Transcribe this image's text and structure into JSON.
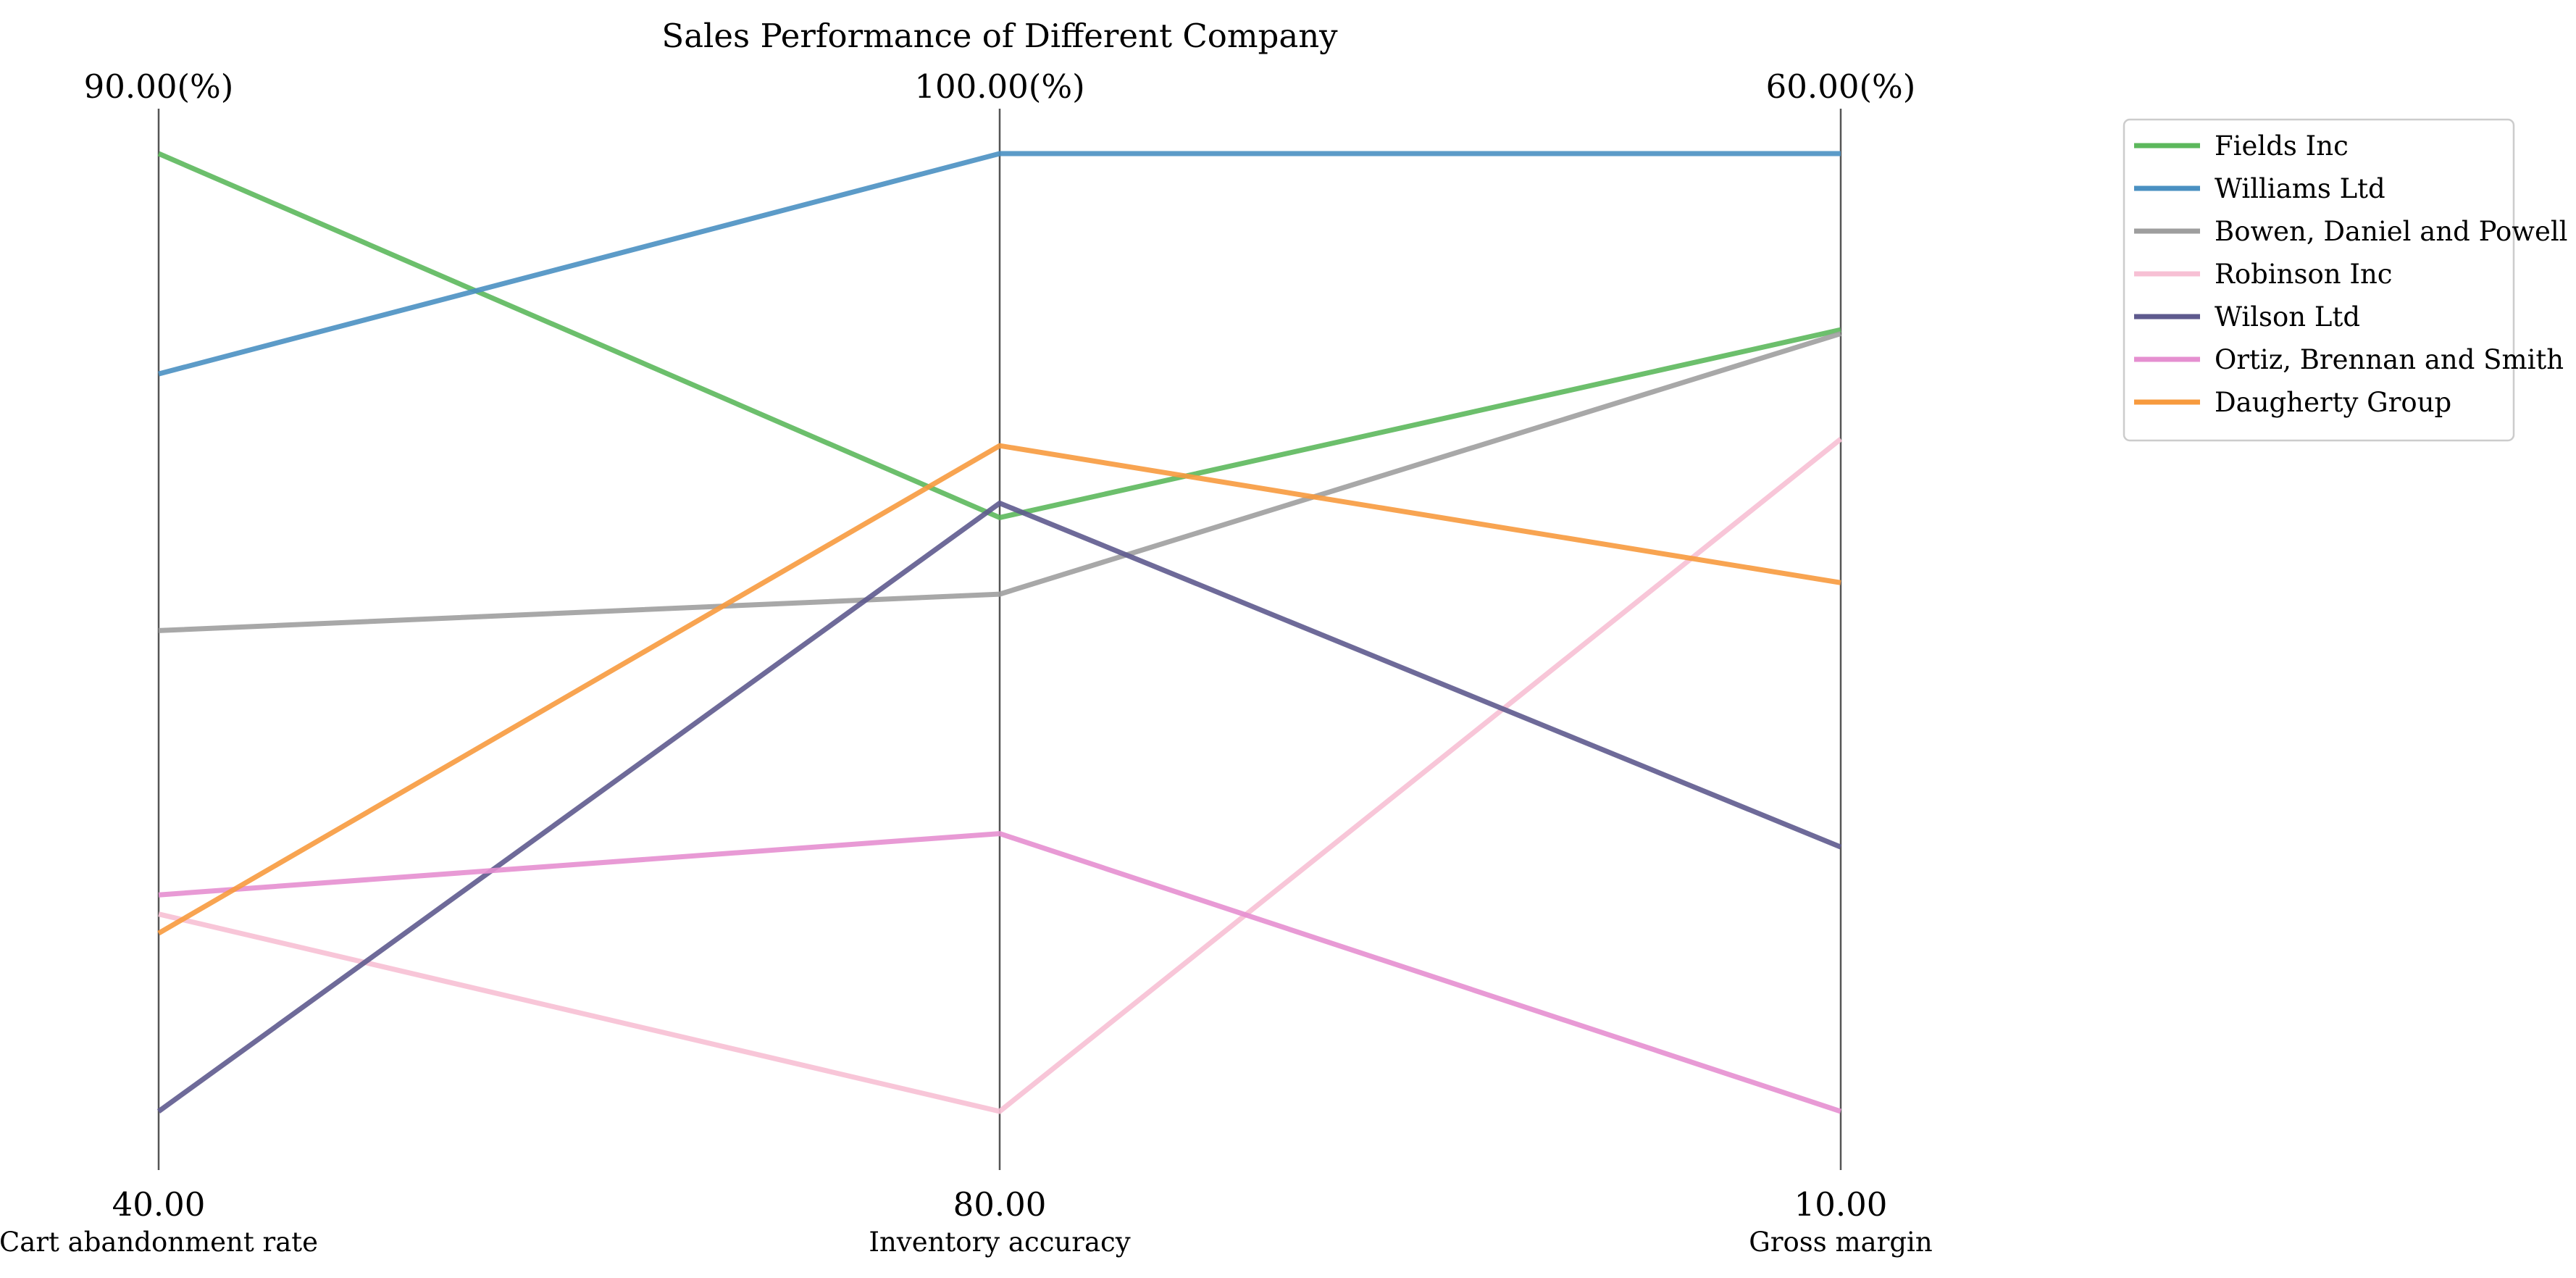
{
  "chart_data": {
    "type": "parallel-coordinates",
    "title": "Sales Performance of Different Company",
    "axes": [
      {
        "name": "Cart abandonment rate",
        "min": 40,
        "max": 90,
        "min_label": "40.00",
        "max_label": "90.00(%)"
      },
      {
        "name": "Inventory accuracy",
        "min": 80,
        "max": 100,
        "min_label": "80.00",
        "max_label": "100.00(%)"
      },
      {
        "name": "Gross margin",
        "min": 10,
        "max": 60,
        "min_label": "10.00",
        "max_label": "60.00(%)"
      }
    ],
    "series": [
      {
        "name": "Fields Inc",
        "color": "#5cb85c",
        "values": [
          90,
          92.4,
          50.8
        ]
      },
      {
        "name": "Williams Ltd",
        "color": "#4a90c2",
        "values": [
          78.5,
          100,
          60
        ]
      },
      {
        "name": "Bowen, Daniel and Powell",
        "color": "#9e9e9e",
        "values": [
          65.1,
          90.8,
          50.6
        ]
      },
      {
        "name": "Robinson Inc",
        "color": "#f7c0d4",
        "values": [
          50.3,
          80,
          45.1
        ]
      },
      {
        "name": "Wilson Ltd",
        "color": "#5e5a8e",
        "values": [
          40,
          92.7,
          23.8
        ]
      },
      {
        "name": "Ortiz, Brennan and Smith",
        "color": "#e58fd0",
        "values": [
          51.3,
          85.8,
          10
        ]
      },
      {
        "name": "Daugherty Group",
        "color": "#f79a3e",
        "values": [
          49.3,
          93.9,
          37.6
        ]
      }
    ],
    "legend": {
      "position": "top-right"
    }
  }
}
